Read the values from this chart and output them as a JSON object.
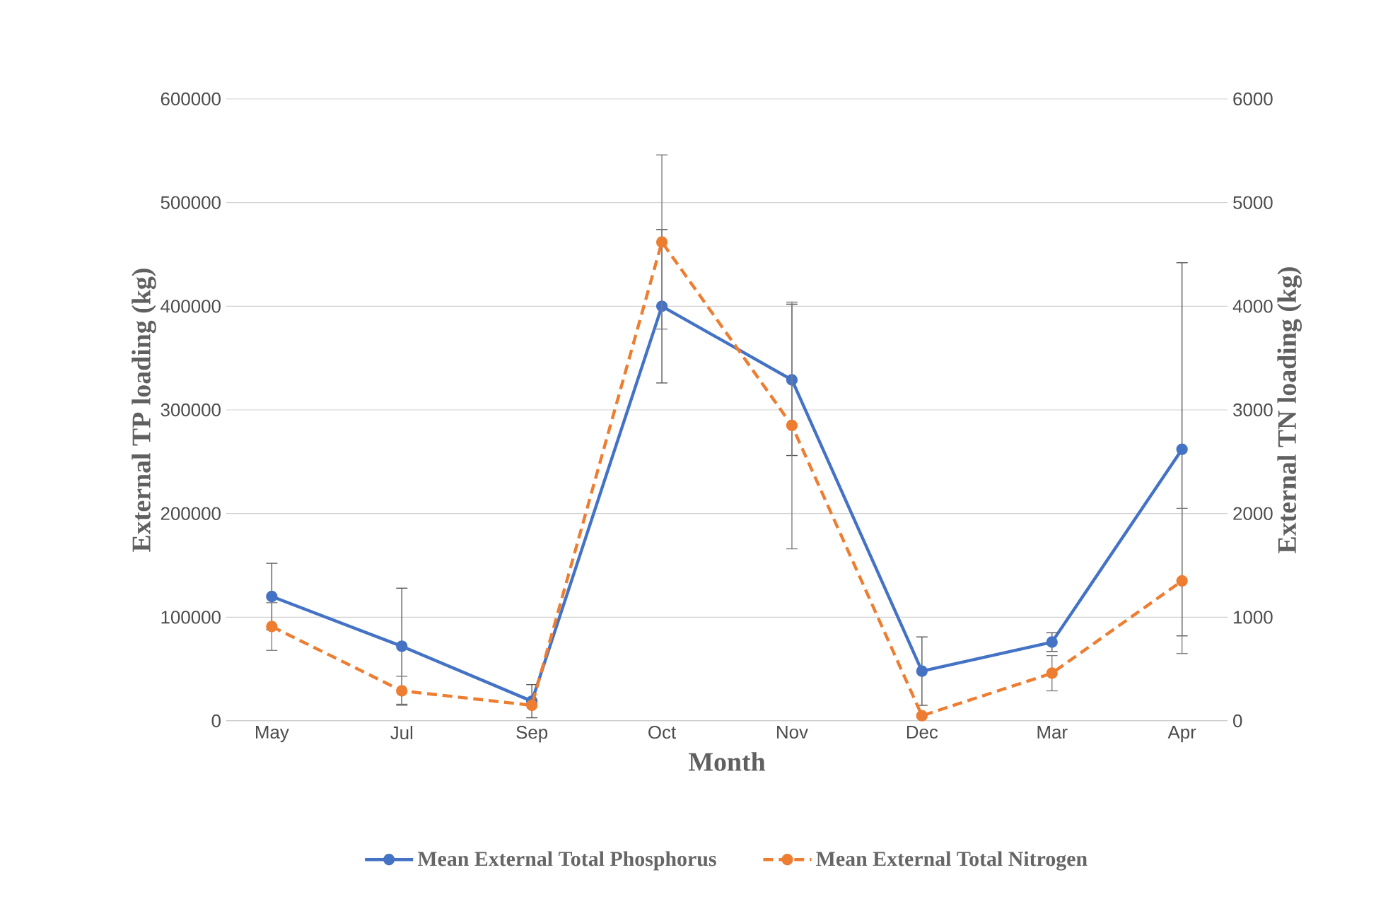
{
  "chart_data": {
    "type": "line",
    "categories": [
      "May",
      "Jul",
      "Sep",
      "Oct",
      "Nov",
      "Dec",
      "Mar",
      "Apr"
    ],
    "series": [
      {
        "name": "Mean External Total Phosphorus",
        "color": "#4472c4",
        "line_style": "solid",
        "values": [
          120000,
          72000,
          19000,
          400000,
          329000,
          48000,
          76000,
          262000
        ],
        "errors": [
          32000,
          56000,
          16000,
          74000,
          73000,
          33000,
          9000,
          180000
        ]
      },
      {
        "name": "Mean External Total Nitrogen",
        "color": "#ed7d31",
        "line_style": "dashed",
        "axis": "y2",
        "values": [
          910,
          290,
          150,
          4620,
          2850,
          50,
          460,
          1350
        ],
        "errors": [
          230,
          140,
          null,
          840,
          1190,
          null,
          170,
          700
        ]
      }
    ],
    "xlabel": "Month",
    "ylabel": "External TP loading (kg)",
    "y2label": "External TN loading (kg)",
    "ylim": [
      0,
      600000
    ],
    "yticks": [
      0,
      100000,
      200000,
      300000,
      400000,
      500000,
      600000
    ],
    "y2lim": [
      0,
      6000
    ],
    "y2ticks": [
      0,
      1000,
      2000,
      3000,
      4000,
      5000,
      6000
    ],
    "grid": "y",
    "legend": "bottom",
    "marker": "circle"
  }
}
